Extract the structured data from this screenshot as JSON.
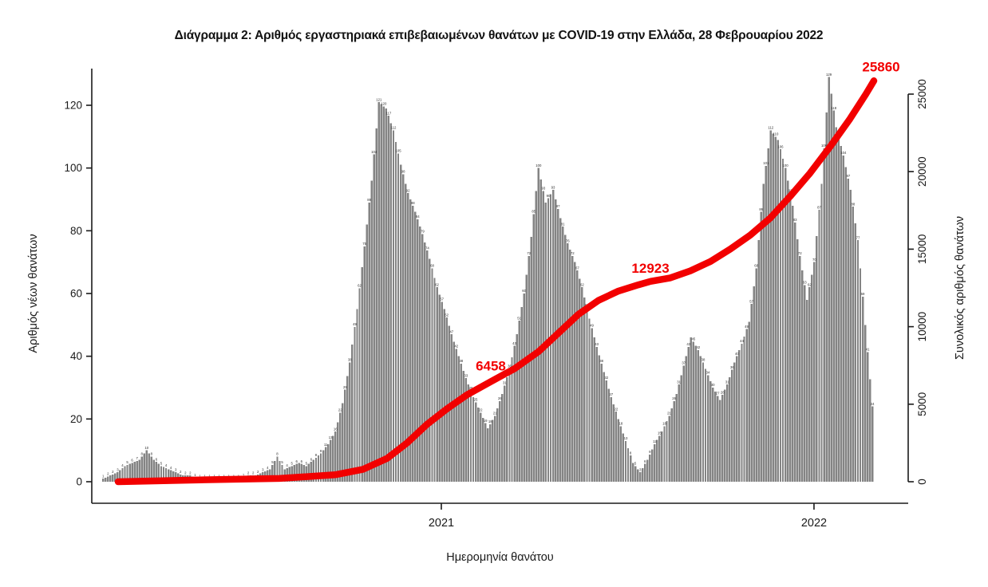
{
  "chart_data": {
    "type": "bar",
    "title": "Διάγραμμα 2: Αριθμός εργαστηριακά επιβεβαιωμένων θανάτων με COVID-19 στην Ελλάδα, 28 Φεβρουαρίου 2022",
    "xlabel": "Ημερομηνία θανάτου",
    "ylabel_left": "Αριθμός νέων θανάτων",
    "ylabel_right": "Συνολικός αριθμός θανάτων",
    "y_left_ticks": [
      0,
      20,
      40,
      60,
      80,
      100,
      120
    ],
    "y_left_lim": [
      0,
      130
    ],
    "y_right_ticks": [
      0,
      5000,
      10000,
      15000,
      20000,
      25000
    ],
    "y_right_lim": [
      0,
      25860
    ],
    "x_ticks": [
      {
        "label": "2021",
        "f": 0.4395
      },
      {
        "label": "2022",
        "f": 0.9224
      }
    ],
    "grid": false,
    "legend": "none",
    "series": [
      {
        "name": "new-deaths-per-day",
        "unit": "deaths/day",
        "sampling": "weekly samples, Mar 2020 - 28 Feb 2022",
        "values": [
          1,
          2,
          3,
          5,
          6,
          7,
          10,
          7,
          5,
          4,
          3,
          2,
          2,
          1,
          1,
          1,
          1,
          1,
          1,
          1,
          2,
          2,
          3,
          4,
          8,
          4,
          5,
          6,
          5,
          7,
          9,
          12,
          16,
          25,
          38,
          55,
          75,
          96,
          121,
          119,
          112,
          101,
          92,
          86,
          79,
          71,
          62,
          55,
          47,
          40,
          33,
          27,
          22,
          17,
          21,
          28,
          36,
          47,
          60,
          78,
          100,
          89,
          93,
          84,
          76,
          70,
          62,
          52,
          43,
          35,
          27,
          20,
          13,
          6,
          3,
          7,
          12,
          16,
          21,
          28,
          37,
          46,
          42,
          36,
          30,
          26,
          31,
          38,
          44,
          51,
          68,
          95,
          112,
          109,
          100,
          88,
          72,
          58,
          70,
          95,
          129,
          113,
          104,
          93,
          77,
          50,
          24
        ]
      },
      {
        "name": "cumulative-deaths",
        "unit": "deaths",
        "points": [
          {
            "f": 0.0207,
            "v": 0
          },
          {
            "f": 0.1262,
            "v": 120
          },
          {
            "f": 0.2296,
            "v": 210
          },
          {
            "f": 0.302,
            "v": 450
          },
          {
            "f": 0.3382,
            "v": 800
          },
          {
            "f": 0.3692,
            "v": 1500
          },
          {
            "f": 0.3951,
            "v": 2500
          },
          {
            "f": 0.4209,
            "v": 3700
          },
          {
            "f": 0.4467,
            "v": 4700
          },
          {
            "f": 0.4726,
            "v": 5600
          },
          {
            "f": 0.5036,
            "v": 6458
          },
          {
            "f": 0.5346,
            "v": 7300
          },
          {
            "f": 0.5657,
            "v": 8400
          },
          {
            "f": 0.5915,
            "v": 9600
          },
          {
            "f": 0.6174,
            "v": 10800
          },
          {
            "f": 0.6432,
            "v": 11700
          },
          {
            "f": 0.6691,
            "v": 12300
          },
          {
            "f": 0.6949,
            "v": 12700
          },
          {
            "f": 0.7105,
            "v": 12923
          },
          {
            "f": 0.7363,
            "v": 13150
          },
          {
            "f": 0.7622,
            "v": 13600
          },
          {
            "f": 0.788,
            "v": 14200
          },
          {
            "f": 0.8139,
            "v": 15000
          },
          {
            "f": 0.8397,
            "v": 15900
          },
          {
            "f": 0.8656,
            "v": 17000
          },
          {
            "f": 0.8914,
            "v": 18400
          },
          {
            "f": 0.9173,
            "v": 19900
          },
          {
            "f": 0.9431,
            "v": 21600
          },
          {
            "f": 0.969,
            "v": 23400
          },
          {
            "f": 0.9897,
            "v": 25000
          },
          {
            "f": 1.0,
            "v": 25860
          }
        ]
      }
    ],
    "annotations": [
      {
        "text": "6458",
        "v": 6458
      },
      {
        "text": "12923",
        "v": 12923
      },
      {
        "text": "25860",
        "v": 25860
      }
    ],
    "colors": {
      "bar": "#848484",
      "bar_label": "#2d2d2d",
      "line": "#f20000",
      "annotation": "#f20000",
      "axis": "#1a1a1a",
      "background": "#ffffff"
    }
  }
}
